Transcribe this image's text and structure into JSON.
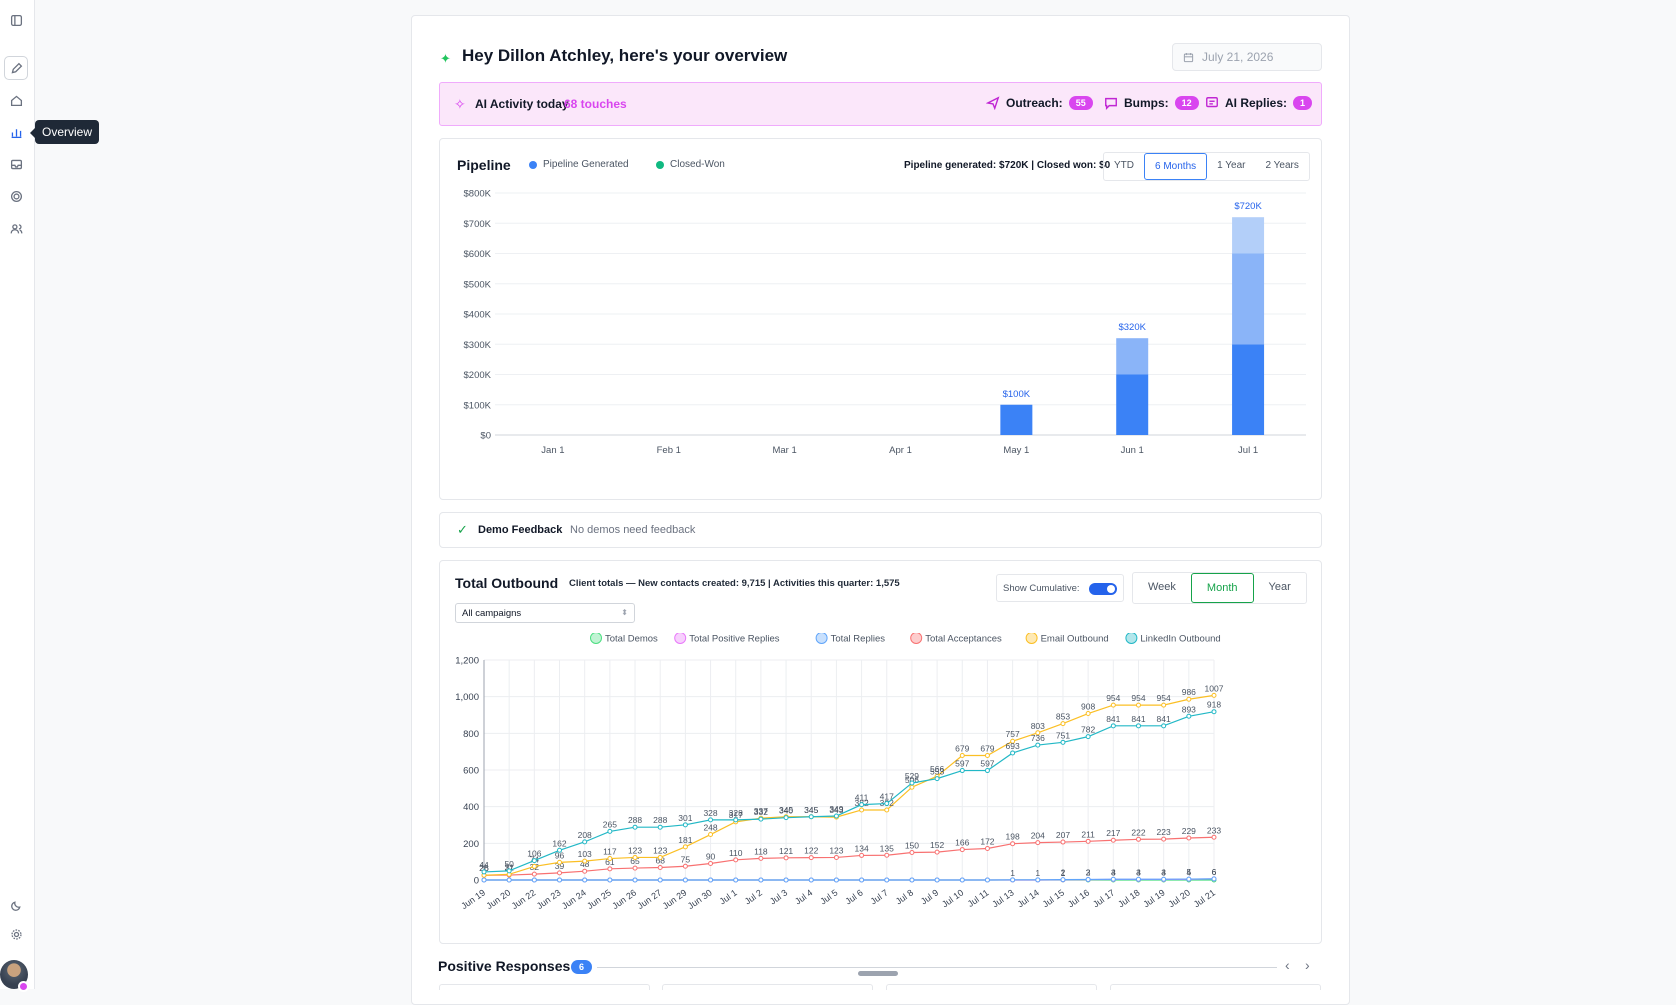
{
  "sidebar": {
    "tooltip": "Overview",
    "items": [
      "layout-toggle-icon",
      "edit-icon",
      "home-icon",
      "chart-icon",
      "inbox-icon",
      "target-icon",
      "users-icon"
    ],
    "footer": [
      "moon-icon",
      "settings-icon"
    ]
  },
  "header": {
    "greeting": "Hey Dillon Atchley, here's your overview",
    "date": "July 21, 2026"
  },
  "ai_activity": {
    "label": "AI Activity today",
    "touches": "68 touches",
    "stats": [
      {
        "label": "Outreach:",
        "count": "55",
        "icon": "send-icon"
      },
      {
        "label": "Bumps:",
        "count": "12",
        "icon": "message-icon"
      },
      {
        "label": "AI Replies:",
        "count": "1",
        "icon": "reply-icon"
      }
    ]
  },
  "pipeline": {
    "title": "Pipeline",
    "legend": [
      "Pipeline Generated",
      "Closed-Won"
    ],
    "summary": "Pipeline generated: $720K | Closed won: $0",
    "ranges": [
      "YTD",
      "6 Months",
      "1 Year",
      "2 Years"
    ],
    "active_range": "6 Months"
  },
  "demo_feedback": {
    "title": "Demo Feedback",
    "message": "No demos need feedback"
  },
  "outbound": {
    "title": "Total Outbound",
    "subtitle": "Client totals — New contacts created: 9,715 | Activities this quarter: 1,575",
    "cumulative_label": "Show Cumulative:",
    "cumulative_on": true,
    "periods": [
      "Week",
      "Month",
      "Year"
    ],
    "active_period": "Month",
    "campaign_select": "All campaigns"
  },
  "positive_responses": {
    "title": "Positive Responses",
    "count": "6"
  },
  "colors": {
    "accent": "#3b82f6",
    "ai_pink": "#d946ef",
    "demos": "#4ade80",
    "positive": "#e879f9",
    "replies": "#60a5fa",
    "acceptances": "#f87171",
    "email": "#fbbf24",
    "linkedin": "#22b8c6"
  },
  "chart_data": [
    {
      "type": "bar",
      "title": "Pipeline",
      "categories": [
        "Jan 1",
        "Feb 1",
        "Mar 1",
        "Apr 1",
        "May 1",
        "Jun 1",
        "Jul 1"
      ],
      "series": [
        {
          "name": "Pipeline Generated",
          "values": [
            0,
            0,
            0,
            0,
            100000,
            320000,
            720000
          ]
        },
        {
          "name": "Closed-Won",
          "values": [
            0,
            0,
            0,
            0,
            0,
            0,
            0
          ]
        }
      ],
      "stack_segments": [
        [],
        [],
        [],
        [],
        [
          100000
        ],
        [
          200000,
          120000
        ],
        [
          300000,
          300000,
          120000
        ]
      ],
      "data_labels": [
        "",
        "",
        "",
        "",
        "$100K",
        "$320K",
        "$720K"
      ],
      "y_ticks": [
        "$0",
        "$100K",
        "$200K",
        "$300K",
        "$400K",
        "$500K",
        "$600K",
        "$700K",
        "$800K"
      ],
      "ylim": [
        0,
        800000
      ],
      "grid": true
    },
    {
      "type": "line",
      "x": [
        "Jun 19",
        "Jun 20",
        "Jun 22",
        "Jun 23",
        "Jun 24",
        "Jun 25",
        "Jun 26",
        "Jun 27",
        "Jun 29",
        "Jun 30",
        "Jul 1",
        "Jul 2",
        "Jul 3",
        "Jul 4",
        "Jul 5",
        "Jul 6",
        "Jul 7",
        "Jul 8",
        "Jul 9",
        "Jul 10",
        "Jul 11",
        "Jul 13",
        "Jul 14",
        "Jul 15",
        "Jul 16",
        "Jul 17",
        "Jul 18",
        "Jul 19",
        "Jul 20",
        "Jul 21"
      ],
      "y_ticks": [
        "0",
        "200",
        "400",
        "600",
        "800",
        "1,000",
        "1,200"
      ],
      "ylim": [
        0,
        1200
      ],
      "grid": true,
      "legend_position": "top-center",
      "series": [
        {
          "name": "Total Demos",
          "values": [
            0,
            0,
            0,
            0,
            0,
            0,
            0,
            0,
            0,
            0,
            0,
            0,
            0,
            0,
            0,
            0,
            0,
            0,
            0,
            0,
            0,
            0,
            0,
            0,
            0,
            0,
            0,
            0,
            0,
            0
          ]
        },
        {
          "name": "Total Positive Replies",
          "values": [
            0,
            0,
            0,
            0,
            0,
            0,
            0,
            0,
            0,
            0,
            0,
            0,
            0,
            0,
            0,
            0,
            0,
            0,
            0,
            0,
            0,
            0,
            0,
            1,
            2,
            3,
            3,
            3,
            4,
            6
          ]
        },
        {
          "name": "Total Replies",
          "values": [
            0,
            0,
            0,
            0,
            0,
            0,
            0,
            0,
            0,
            0,
            0,
            0,
            0,
            0,
            0,
            0,
            0,
            0,
            0,
            0,
            0,
            1,
            1,
            2,
            3,
            4,
            4,
            4,
            5,
            6
          ]
        },
        {
          "name": "Total Acceptances",
          "values": [
            26,
            27,
            32,
            39,
            48,
            61,
            65,
            68,
            75,
            90,
            110,
            118,
            121,
            122,
            123,
            134,
            135,
            150,
            152,
            166,
            172,
            198,
            204,
            207,
            211,
            217,
            222,
            223,
            229,
            233
          ]
        },
        {
          "name": "Email Outbound",
          "values": [
            26,
            31,
            74,
            96,
            103,
            117,
            123,
            123,
            181,
            248,
            317,
            337,
            345,
            345,
            343,
            382,
            382,
            506,
            566,
            679,
            679,
            757,
            803,
            853,
            908,
            954,
            954,
            954,
            986,
            1007
          ]
        },
        {
          "name": "LinkedIn Outbound",
          "values": [
            44,
            50,
            106,
            162,
            208,
            265,
            288,
            288,
            301,
            328,
            328,
            332,
            340,
            345,
            349,
            411,
            417,
            529,
            553,
            597,
            597,
            693,
            736,
            751,
            782,
            841,
            841,
            841,
            893,
            918
          ]
        }
      ]
    }
  ]
}
